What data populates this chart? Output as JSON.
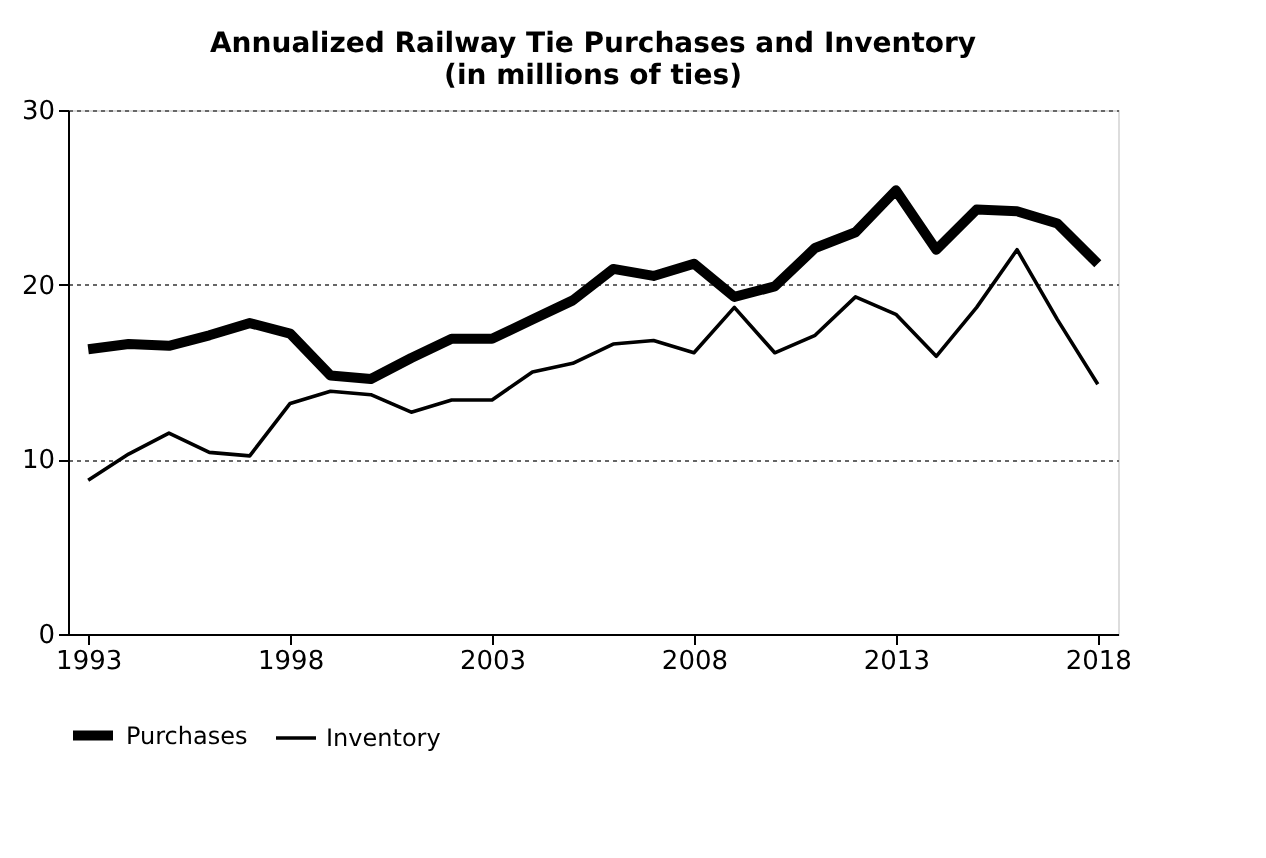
{
  "chart_data": {
    "type": "line",
    "title": [
      "Annualized Railway Tie Purchases and Inventory",
      "(in millions of ties)"
    ],
    "x": [
      1993,
      1994,
      1995,
      1996,
      1997,
      1998,
      1999,
      2000,
      2001,
      2002,
      2003,
      2004,
      2005,
      2006,
      2007,
      2008,
      2009,
      2010,
      2011,
      2012,
      2013,
      2014,
      2015,
      2016,
      2017,
      2018
    ],
    "series": [
      {
        "name": "Purchases",
        "color": "#000000",
        "values": [
          16.3,
          16.6,
          16.5,
          17.1,
          17.8,
          17.2,
          14.8,
          14.6,
          15.8,
          16.9,
          16.9,
          18.0,
          19.1,
          20.9,
          20.5,
          21.2,
          19.3,
          19.9,
          22.1,
          23.0,
          25.4,
          22.0,
          24.3,
          24.2,
          23.5,
          21.2
        ]
      },
      {
        "name": "Inventory",
        "color": "#000000",
        "values": [
          8.8,
          10.3,
          11.5,
          10.4,
          10.2,
          13.2,
          13.9,
          13.7,
          12.7,
          13.4,
          13.4,
          15.0,
          15.5,
          16.6,
          16.8,
          16.1,
          18.7,
          16.1,
          17.1,
          19.3,
          18.3,
          15.9,
          18.7,
          22.0,
          18.0,
          14.3
        ]
      }
    ],
    "xlim": [
      1992.5,
      2018.5
    ],
    "xticks": [
      1993,
      1998,
      2003,
      2008,
      2013,
      2018
    ],
    "ylim": [
      0,
      30
    ],
    "yticks": [
      0,
      10,
      20,
      30
    ],
    "grid": "y",
    "legend": "bottom",
    "marker": "none",
    "line_style": "solid"
  }
}
